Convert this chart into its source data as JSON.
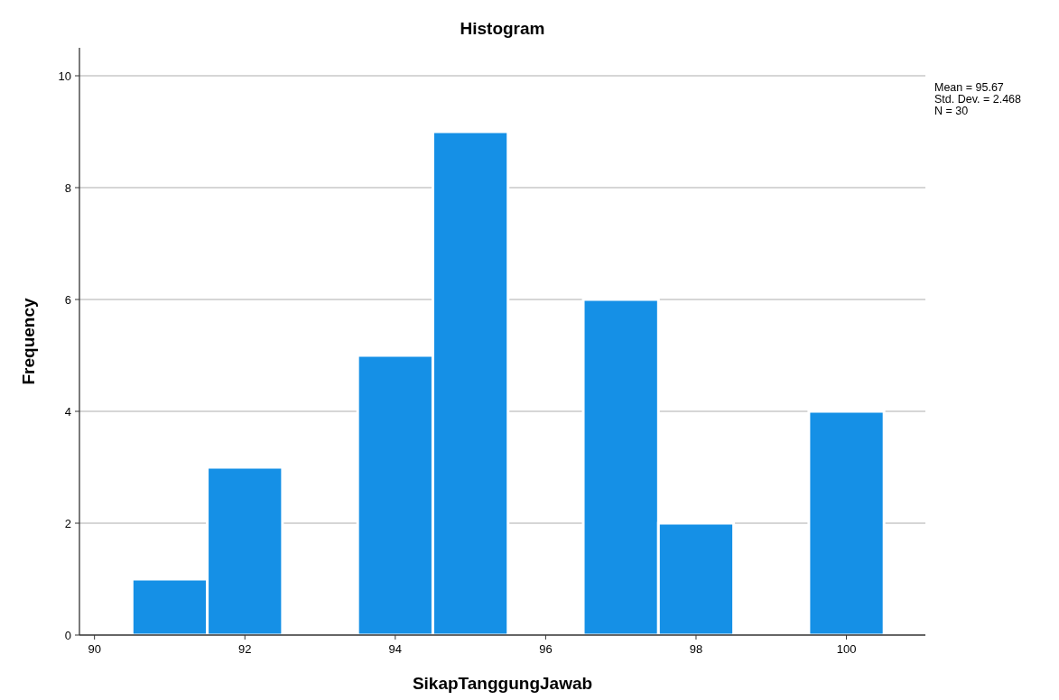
{
  "chart_data": {
    "type": "histogram",
    "title": "Histogram",
    "xlabel": "SikapTanggungJawab",
    "ylabel": "Frequency",
    "bins": [
      90.5,
      91.5,
      92.5,
      93.5,
      94.5,
      95.5,
      96.5,
      97.5,
      98.5,
      99.5,
      100.5
    ],
    "values": [
      1,
      3,
      0,
      5,
      9,
      0,
      6,
      2,
      0,
      4
    ],
    "color": "#1590e6",
    "xlim": [
      89.8,
      101.05
    ],
    "xticks": [
      90,
      92,
      94,
      96,
      98,
      100
    ],
    "ylim": [
      0,
      10.5
    ],
    "yticks": [
      0,
      2,
      4,
      6,
      8,
      10
    ],
    "grid": "y",
    "annotations": [
      "Mean = 95.67",
      "Std. Dev. = 2.468",
      "N = 30"
    ]
  }
}
